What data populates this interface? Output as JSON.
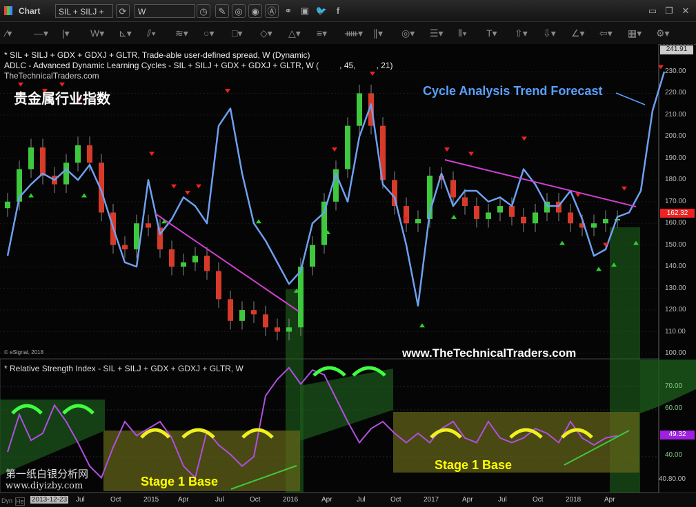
{
  "toolbar": {
    "title": "Chart",
    "symbol": "SIL + SILJ +",
    "interval": "W",
    "icons": [
      "chart-settings-icon",
      "symbol-search-icon",
      "interval-clock-icon",
      "pencil-icon",
      "chart-style-icon",
      "play-icon",
      "alert-icon",
      "link-icon",
      "comment-icon",
      "twitter-icon",
      "facebook-icon"
    ],
    "drawing_tools": [
      "line-tool",
      "horizontal-line-tool",
      "vertical-line-tool",
      "wave-tool",
      "fan-tool",
      "pitchfork-tool",
      "gann-tool",
      "ellipse-tool",
      "rectangle-tool",
      "eraser-tool",
      "triangle-tool",
      "channel-tool",
      "cycle-tool",
      "parallel-tool",
      "fib-circle-tool",
      "fib-lines-tool",
      "bars-tool",
      "text-tool",
      "arrow-up-tool",
      "arrow-down-tool",
      "angle-tool",
      "back-tool",
      "grid-tool",
      "options-tool"
    ]
  },
  "legend": {
    "line1": "* SIL + SILJ + GDX + GDXJ + GLTR, Trade-able user-defined spread, W (Dynamic)",
    "line2": "ADLC - Advanced Dynamic Learning Cycles - SIL + SILJ + GDX + GDXJ + GLTR, W (         , 45,         , 21)",
    "line3": "TheTechnicalTraders.com",
    "rsi": "* Relative Strength Index - SIL + SILJ + GDX + GDXJ + GLTR, W"
  },
  "annotations": {
    "chinese_title": "贵金属行业指数",
    "forecast": "Cycle Analysis Trend Forecast",
    "website": "www.TheTechnicalTraders.com",
    "stage1": "Stage 1 Base",
    "stage2": "Stage 1 Base",
    "esignal": "© eSignal, 2018",
    "watermark_cn": "第一纸白银分析网",
    "watermark_url": "www.diyizby.com"
  },
  "colors": {
    "cycle": "#6fa0f0",
    "rsi": "#b050e0",
    "up": "#3ec83e",
    "down": "#d83a2a",
    "trend": "#d040d0",
    "arc_green": "#40ff40",
    "arc_yellow": "#f0f020"
  },
  "price_axis": {
    "labels": [
      "230.00",
      "220.00",
      "210.00",
      "200.00",
      "190.00",
      "180.00",
      "170.00",
      "160.00",
      "150.00",
      "140.00",
      "130.00",
      "120.00",
      "110.00",
      "100.00"
    ],
    "top_value": "241.91",
    "last_value": "162.32"
  },
  "rsi_axis": {
    "labels": [
      "70.00",
      "60.00",
      "40.00"
    ],
    "last_value": "49.32",
    "bottom": "40.80.00"
  },
  "x_axis": {
    "start_date": "2013-12-23",
    "mode_buttons": [
      "Dyn",
      "He"
    ],
    "labels": [
      "Jul",
      "Oct",
      "2015",
      "Apr",
      "Jul",
      "Oct",
      "2016",
      "Apr",
      "Jul",
      "Oct",
      "2017",
      "Apr",
      "Jul",
      "Oct",
      "2018",
      "Apr"
    ]
  },
  "chart_data": [
    {
      "type": "candlestick",
      "name": "SIL + SILJ + GDX + GDXJ + GLTR",
      "period": "monthly-sampled",
      "x_start": "2014-01",
      "ylim": [
        100,
        241.91
      ],
      "closes": [
        170,
        185,
        195,
        182,
        178,
        188,
        196,
        188,
        165,
        150,
        148,
        160,
        158,
        148,
        140,
        142,
        145,
        138,
        125,
        115,
        120,
        118,
        112,
        110,
        112,
        140,
        150,
        170,
        185,
        205,
        220,
        205,
        180,
        168,
        160,
        162,
        182,
        180,
        172,
        168,
        162,
        165,
        168,
        163,
        160,
        165,
        170,
        165,
        160,
        158,
        160,
        162,
        162
      ]
    },
    {
      "type": "line",
      "name": "ADLC",
      "x_start": "2014-01",
      "values": [
        145,
        172,
        178,
        183,
        180,
        185,
        180,
        187,
        175,
        158,
        142,
        140,
        180,
        155,
        162,
        172,
        168,
        160,
        205,
        213,
        183,
        160,
        152,
        142,
        132,
        138,
        160,
        165,
        183,
        170,
        200,
        215,
        178,
        172,
        150,
        122,
        165,
        183,
        168,
        175,
        175,
        170,
        172,
        168,
        185,
        178,
        168,
        168,
        175,
        162,
        145,
        148,
        163,
        165,
        175,
        212,
        230
      ]
    },
    {
      "type": "line",
      "name": "Relative Strength Index",
      "x_start": "2014-01",
      "ylim": [
        35,
        80
      ],
      "values": [
        42,
        58,
        47,
        50,
        62,
        55,
        46,
        36,
        31,
        44,
        55,
        49,
        52,
        55,
        48,
        36,
        31,
        51,
        45,
        41,
        36,
        40,
        66,
        73,
        78,
        71,
        77,
        75,
        65,
        55,
        46,
        52,
        55,
        50,
        46,
        50,
        46,
        52,
        55,
        48,
        46,
        55,
        48,
        46,
        48,
        52,
        50,
        46,
        55,
        48,
        45,
        48,
        49
      ]
    }
  ]
}
